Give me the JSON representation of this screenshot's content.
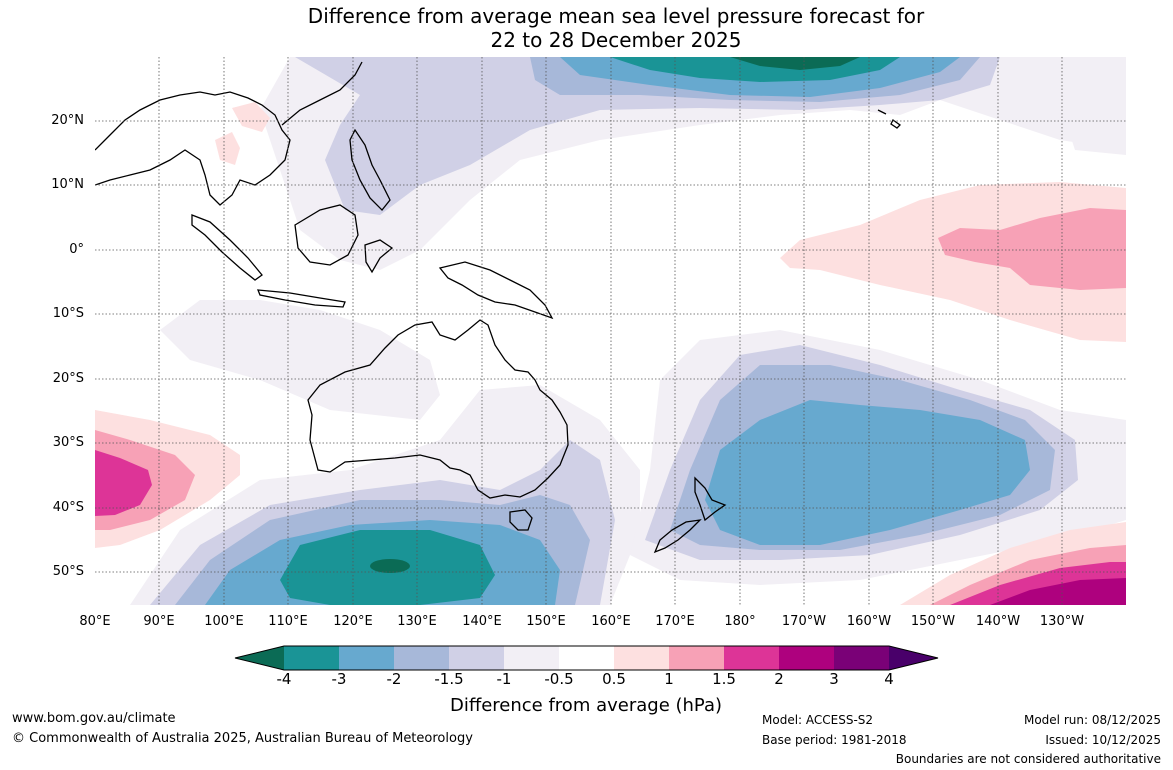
{
  "title_line1": "Difference from average mean sea level pressure forecast for",
  "title_line2": "22 to 28 December 2025",
  "map": {
    "lat_labels": [
      "20°N",
      "10°N",
      "0°",
      "10°S",
      "20°S",
      "30°S",
      "40°S",
      "50°S"
    ],
    "lon_labels": [
      "80°E",
      "90°E",
      "100°E",
      "110°E",
      "120°E",
      "130°E",
      "140°E",
      "150°E",
      "160°E",
      "170°E",
      "180°",
      "170°W",
      "160°W",
      "150°W",
      "140°W",
      "130°W"
    ],
    "region": "Australia and surrounding oceans",
    "features": [
      {
        "name": "strong negative anomaly south of Australia",
        "approx_lat": -50,
        "approx_lon": 125,
        "value_range": "-4 to -3"
      },
      {
        "name": "negative anomaly east of New Zealand",
        "approx_lat": -35,
        "approx_lon": 195,
        "value_range": "-3 to -2"
      },
      {
        "name": "negative anomaly north Pacific",
        "approx_lat": 27,
        "approx_lon": 138,
        "value_range": "-4 to -3"
      },
      {
        "name": "positive anomaly southern Indian Ocean",
        "approx_lat": -36,
        "approx_lon": 85,
        "value_range": "1.5 to 2"
      },
      {
        "name": "positive anomaly equatorial east Pacific",
        "approx_lat": 0,
        "approx_lon": 220,
        "value_range": "1 to 1.5"
      },
      {
        "name": "strong positive anomaly south-east Pacific",
        "approx_lat": -53,
        "approx_lon": 225,
        "value_range": "2 to 3"
      }
    ]
  },
  "colorbar": {
    "ticks": [
      "-4",
      "-3",
      "-2",
      "-1.5",
      "-1",
      "-0.5",
      "0.5",
      "1",
      "1.5",
      "2",
      "3",
      "4"
    ],
    "colors": [
      "#0b6b55",
      "#1a9496",
      "#67a9cf",
      "#a7b8d9",
      "#d0d0e6",
      "#f2eff5",
      "#ffffff",
      "#fde0e0",
      "#f7a1b6",
      "#dd3497",
      "#ae017e",
      "#7a0177",
      "#49006a"
    ],
    "label": "Difference from average (hPa)"
  },
  "footer": {
    "website": "www.bom.gov.au/climate",
    "copyright": "© Commonwealth of Australia 2025, Australian Bureau of Meteorology",
    "model": "Model: ACCESS-S2",
    "base_period": "Base period: 1981-2018",
    "model_run": "Model run: 08/12/2025",
    "issued": "Issued: 10/12/2025",
    "boundaries": "Boundaries are not considered authoritative"
  }
}
